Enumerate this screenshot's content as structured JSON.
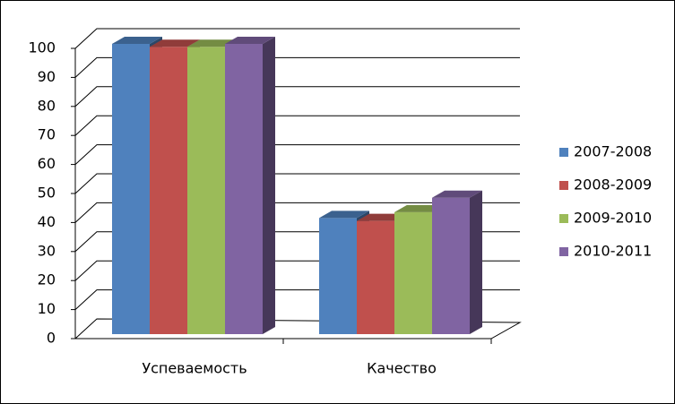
{
  "chart_data": {
    "type": "bar3d",
    "categories": [
      "Успеваемость",
      "Качество"
    ],
    "series": [
      {
        "name": "2007-2008",
        "color": "#4f81bd",
        "values": [
          100,
          40
        ]
      },
      {
        "name": "2008-2009",
        "color": "#c0504d",
        "values": [
          99,
          39
        ]
      },
      {
        "name": "2009-2010",
        "color": "#9bbb59",
        "values": [
          99,
          42
        ]
      },
      {
        "name": "2010-2011",
        "color": "#8064a2",
        "values": [
          100,
          47
        ]
      }
    ],
    "ylim": [
      0,
      100
    ],
    "yticks": [
      0,
      10,
      20,
      30,
      40,
      50,
      60,
      70,
      80,
      90,
      100
    ],
    "grid": true,
    "legend": "right"
  }
}
